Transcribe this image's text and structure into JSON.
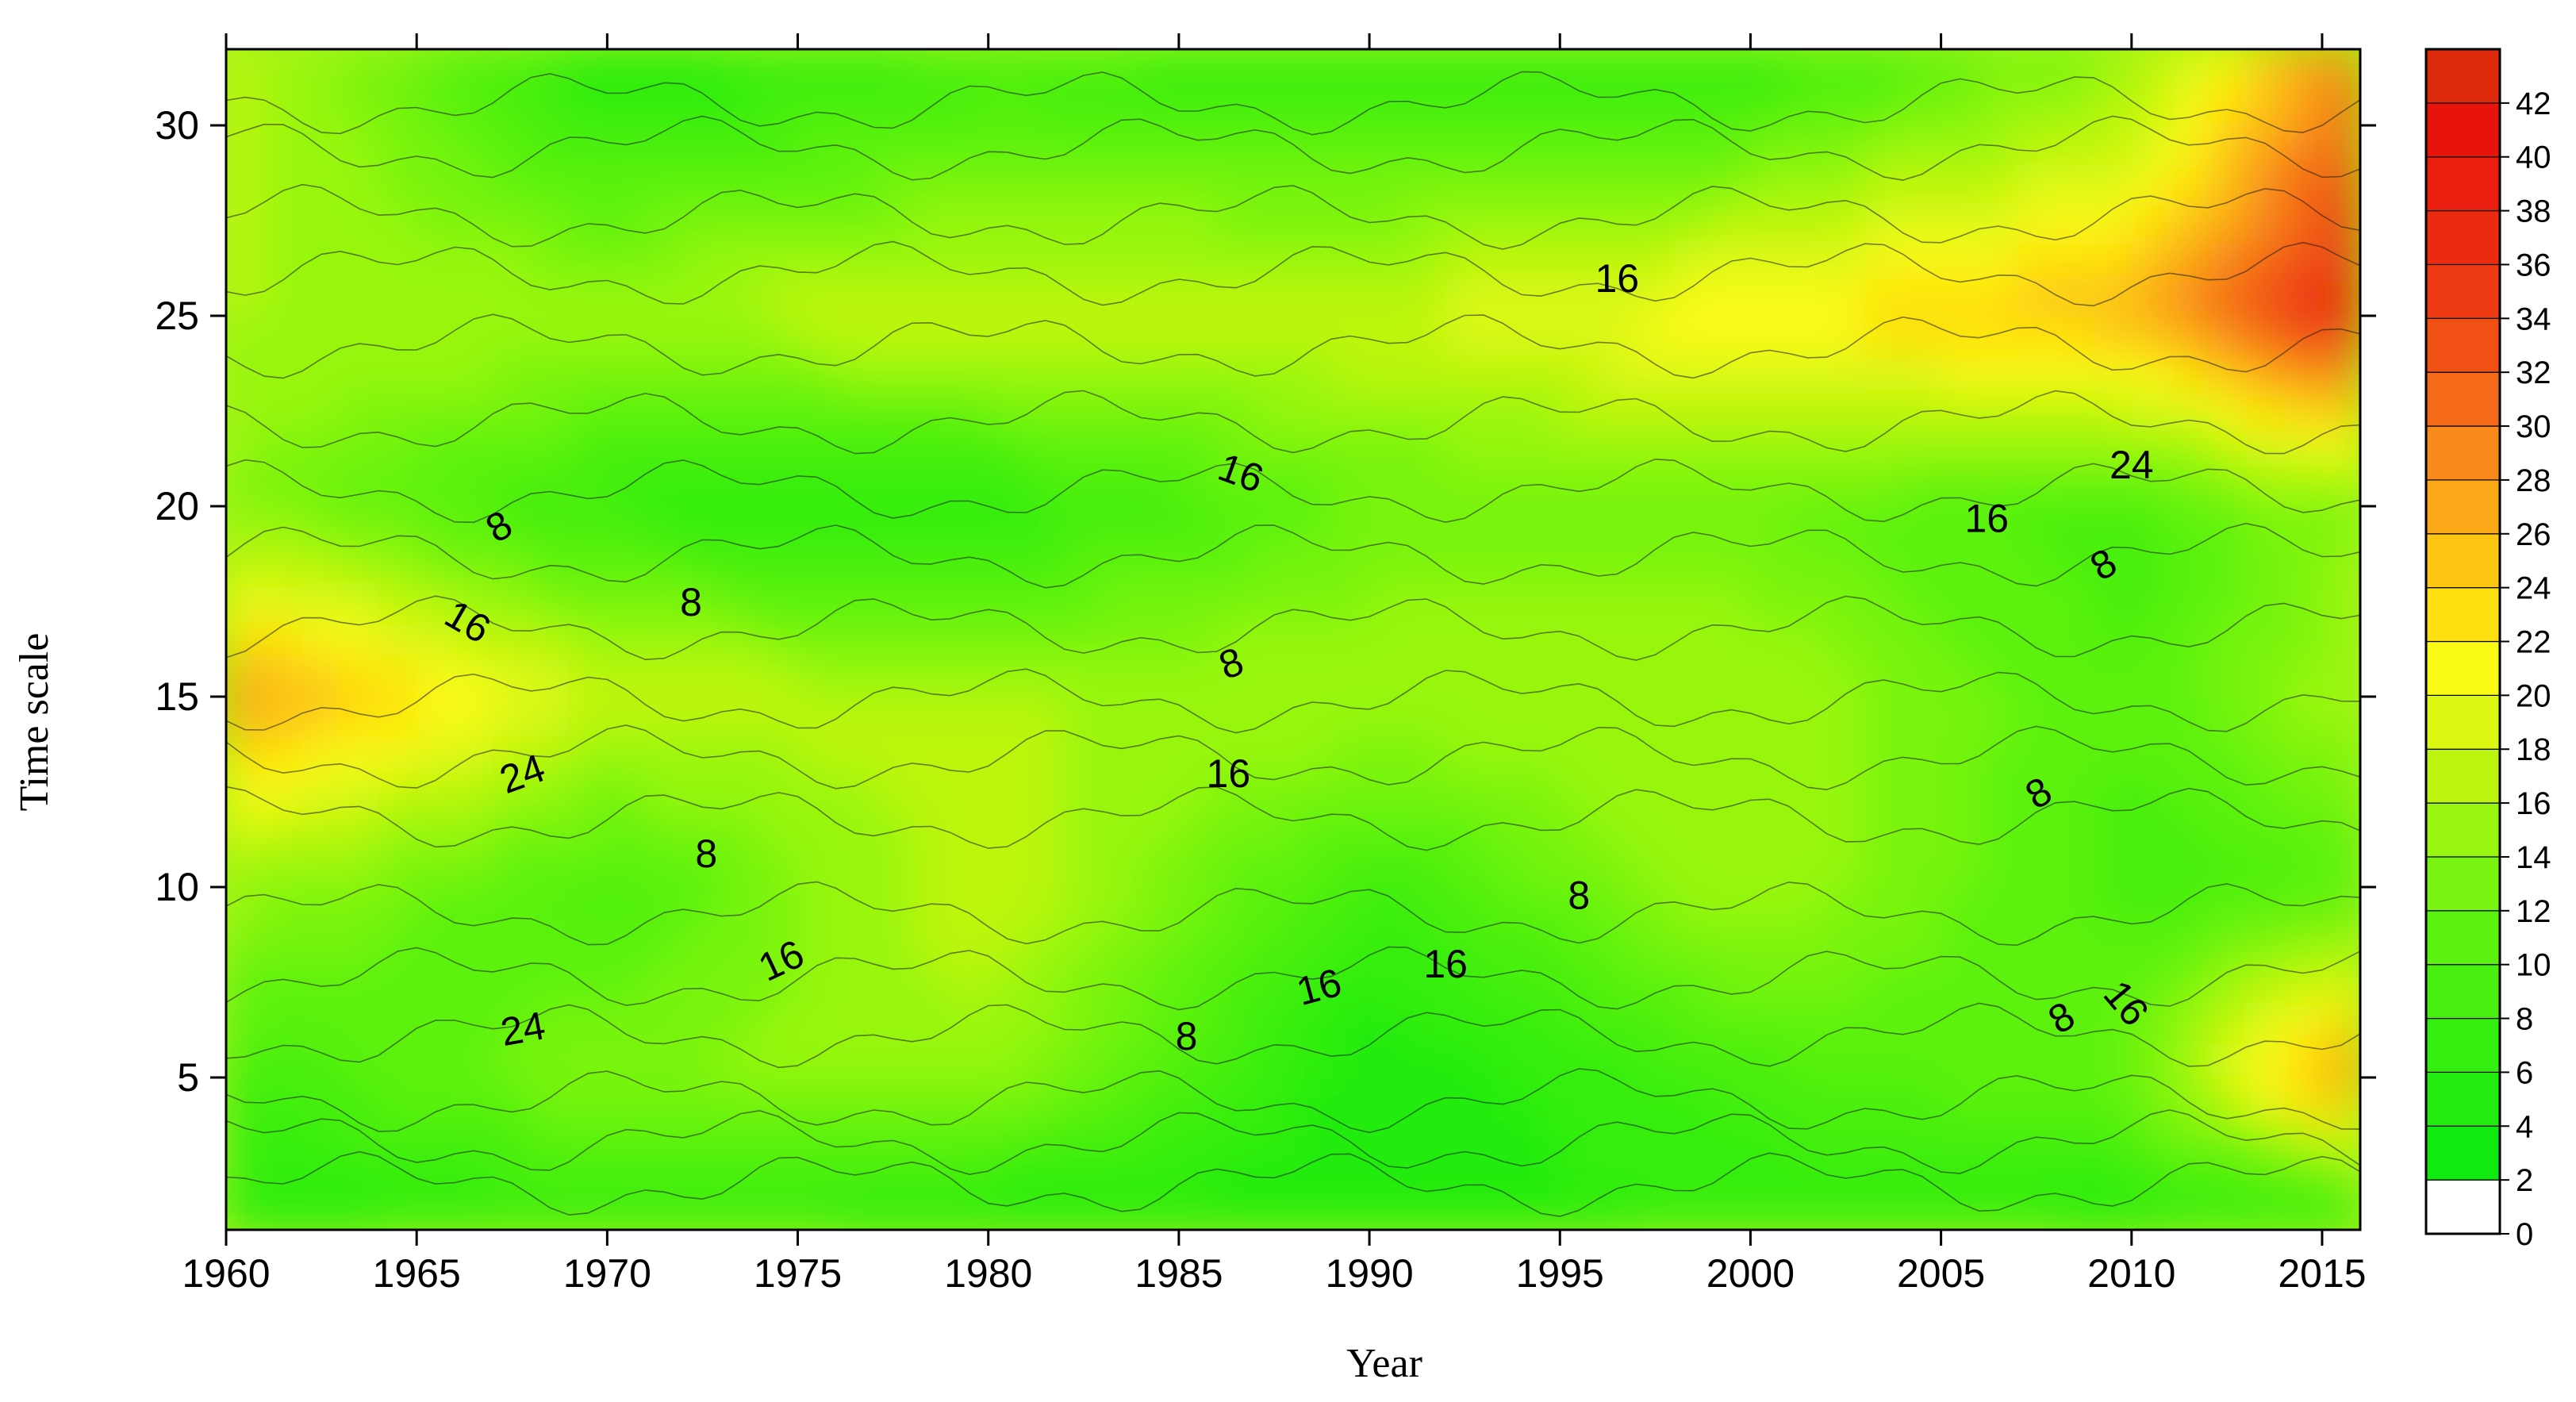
{
  "chart_data": {
    "type": "heatmap",
    "subtype": "filled-contour",
    "title": "",
    "xlabel": "Year",
    "ylabel": "Time scale",
    "xlim": [
      1960,
      2016
    ],
    "ylim": [
      1,
      32
    ],
    "x_ticks": [
      1960,
      1965,
      1970,
      1975,
      1980,
      1985,
      1990,
      1995,
      2000,
      2005,
      2010,
      2015
    ],
    "y_ticks": [
      5,
      10,
      15,
      20,
      25,
      30
    ],
    "colorbar": {
      "levels": [
        0,
        2,
        4,
        6,
        8,
        10,
        12,
        14,
        16,
        18,
        20,
        22,
        24,
        26,
        28,
        30,
        32,
        34,
        36,
        38,
        40,
        42
      ],
      "max": 44,
      "colors": [
        "#ffffff",
        "#10ea10",
        "#22ec10",
        "#34ee10",
        "#48f010",
        "#5cf210",
        "#78f410",
        "#98f610",
        "#bcf610",
        "#dcf812",
        "#fafa14",
        "#fee010",
        "#fcc612",
        "#fba818",
        "#f88a1c",
        "#f46a18",
        "#f05014",
        "#ee3a12",
        "#ec2a10",
        "#ea1e0e",
        "#e8140c",
        "#e60c0a"
      ],
      "top_color": "#dd2a0a"
    },
    "grid_years": [
      1960,
      1970,
      1980,
      1990,
      2000,
      2010,
      2016
    ],
    "grid_scales": [
      1,
      5,
      10,
      15,
      20,
      25,
      32
    ],
    "values": [
      [
        5,
        6,
        4,
        5,
        6,
        5,
        3
      ],
      [
        8,
        14,
        15,
        4,
        9,
        12,
        30
      ],
      [
        15,
        9,
        18,
        8,
        16,
        9,
        10
      ],
      [
        28,
        18,
        16,
        16,
        16,
        10,
        16
      ],
      [
        14,
        7,
        6,
        12,
        12,
        9,
        14
      ],
      [
        16,
        16,
        18,
        18,
        22,
        26,
        38
      ],
      [
        18,
        4,
        8,
        6,
        6,
        14,
        30
      ]
    ],
    "contour_labels": [
      {
        "text": "8",
        "x": 1967.2,
        "y": 19.4,
        "angle": -30
      },
      {
        "text": "8",
        "x": 1972.2,
        "y": 17.4,
        "angle": 0
      },
      {
        "text": "16",
        "x": 1966.3,
        "y": 16.9,
        "angle": 30
      },
      {
        "text": "24",
        "x": 1967.8,
        "y": 12.9,
        "angle": -20
      },
      {
        "text": "8",
        "x": 1972.6,
        "y": 10.8,
        "angle": 0
      },
      {
        "text": "16",
        "x": 1974.6,
        "y": 8.0,
        "angle": -25
      },
      {
        "text": "24",
        "x": 1967.8,
        "y": 6.2,
        "angle": -10
      },
      {
        "text": "16",
        "x": 1986.6,
        "y": 20.8,
        "angle": 20
      },
      {
        "text": "8",
        "x": 1986.4,
        "y": 15.8,
        "angle": -20
      },
      {
        "text": "16",
        "x": 1986.3,
        "y": 12.9,
        "angle": 0
      },
      {
        "text": "8",
        "x": 1985.2,
        "y": 6.0,
        "angle": 0
      },
      {
        "text": "16",
        "x": 1988.7,
        "y": 7.3,
        "angle": -15
      },
      {
        "text": "16",
        "x": 1992.0,
        "y": 7.9,
        "angle": 0
      },
      {
        "text": "8",
        "x": 1995.5,
        "y": 9.7,
        "angle": 0
      },
      {
        "text": "16",
        "x": 1996.5,
        "y": 25.9,
        "angle": 0
      },
      {
        "text": "16",
        "x": 2006.2,
        "y": 19.6,
        "angle": 0
      },
      {
        "text": "24",
        "x": 2010.0,
        "y": 21.0,
        "angle": 0
      },
      {
        "text": "8",
        "x": 2009.3,
        "y": 18.4,
        "angle": -30
      },
      {
        "text": "8",
        "x": 2007.6,
        "y": 12.4,
        "angle": -30
      },
      {
        "text": "8",
        "x": 2008.2,
        "y": 6.5,
        "angle": -30
      },
      {
        "text": "16",
        "x": 2009.8,
        "y": 6.9,
        "angle": 50
      }
    ]
  }
}
